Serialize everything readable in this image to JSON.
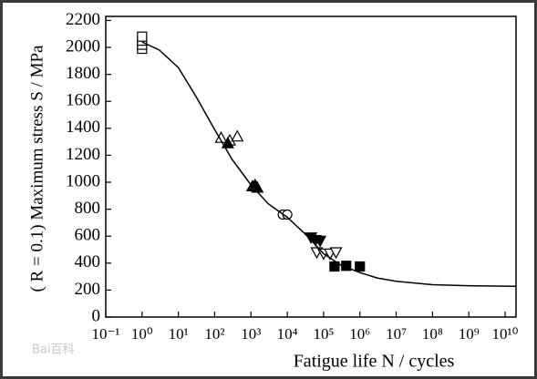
{
  "chart_data": {
    "type": "scatter",
    "xlabel": "Fatigue life N / cycles",
    "ylabel": "( R = 0.1) Maximum stress S / MPa",
    "watermark": "Bai百科",
    "xscale": "log",
    "xlim": [
      0.1,
      20000000000
    ],
    "ylim": [
      0,
      2230
    ],
    "xticks": [
      {
        "value": 0.1,
        "label": "10⁻¹"
      },
      {
        "value": 1,
        "label": "10⁰"
      },
      {
        "value": 10,
        "label": "10¹"
      },
      {
        "value": 100,
        "label": "10²"
      },
      {
        "value": 1000,
        "label": "10³"
      },
      {
        "value": 10000,
        "label": "10⁴"
      },
      {
        "value": 100000,
        "label": "10⁵"
      },
      {
        "value": 1000000,
        "label": "10⁶"
      },
      {
        "value": 10000000,
        "label": "10⁷"
      },
      {
        "value": 100000000,
        "label": "10⁸"
      },
      {
        "value": 1000000000,
        "label": "10⁹"
      },
      {
        "value": 10000000000,
        "label": "10¹⁰"
      }
    ],
    "yticks": [
      0,
      200,
      400,
      600,
      800,
      1000,
      1200,
      1400,
      1600,
      1800,
      2000,
      2200
    ],
    "color": "#000000",
    "series": [
      {
        "marker": "square",
        "filled": false,
        "x": [
          1,
          1,
          1,
          1
        ],
        "values": [
          1990,
          2020,
          2050,
          2080
        ]
      },
      {
        "marker": "triangle-up",
        "filled": false,
        "x": [
          150,
          260,
          420
        ],
        "values": [
          1330,
          1310,
          1340
        ]
      },
      {
        "marker": "triangle-up",
        "filled": true,
        "x": [
          230,
          1100,
          1300,
          1500
        ],
        "values": [
          1290,
          970,
          980,
          960
        ]
      },
      {
        "marker": "circle",
        "filled": false,
        "x": [
          7500,
          10000
        ],
        "values": [
          760,
          760
        ]
      },
      {
        "marker": "triangle-down",
        "filled": true,
        "x": [
          45000,
          60000,
          80000
        ],
        "values": [
          590,
          570,
          565
        ]
      },
      {
        "marker": "triangle-down",
        "filled": false,
        "x": [
          65000,
          100000,
          150000,
          220000
        ],
        "values": [
          480,
          470,
          470,
          480
        ]
      },
      {
        "marker": "square",
        "filled": true,
        "x": [
          200000,
          420000,
          1000000
        ],
        "values": [
          375,
          380,
          375
        ]
      },
      {
        "marker": "line",
        "x": [
          1,
          3,
          10,
          30,
          100,
          300,
          1000,
          3000,
          10000,
          30000,
          100000,
          300000,
          1000000,
          3000000,
          10000000,
          100000000,
          1000000000,
          10000000000,
          20000000000
        ],
        "values": [
          2040,
          1980,
          1850,
          1640,
          1390,
          1170,
          980,
          840,
          740,
          620,
          470,
          385,
          330,
          290,
          265,
          240,
          232,
          229,
          228
        ]
      }
    ]
  }
}
